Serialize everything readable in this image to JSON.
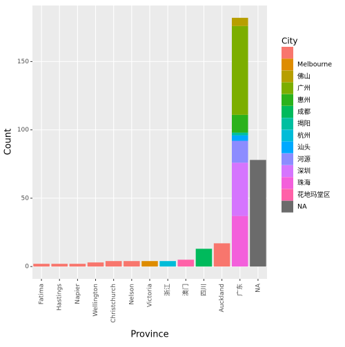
{
  "chart_data": {
    "type": "stacked_bar",
    "x_label": "Province",
    "y_label": "Count",
    "legend_title": "City",
    "categories": [
      "Fatima",
      "Hastings",
      "Napier",
      "Wellington",
      "Christchurch",
      "Nelson",
      "Victoria",
      "浙江",
      "澳门",
      "四川",
      "Auckland",
      "广东",
      "NA"
    ],
    "series": [
      {
        "name": null,
        "color": "#F8766D",
        "values": [
          2,
          2,
          2,
          3,
          4,
          4,
          null,
          null,
          null,
          null,
          17,
          null,
          null
        ]
      },
      {
        "name": "Melbourne",
        "color": "#DE8C00",
        "values": [
          null,
          null,
          null,
          null,
          null,
          null,
          4,
          null,
          null,
          null,
          null,
          null,
          null
        ]
      },
      {
        "name": "佛山",
        "color": "#B79F00",
        "values": [
          null,
          null,
          null,
          null,
          null,
          null,
          null,
          null,
          null,
          null,
          null,
          6,
          null
        ]
      },
      {
        "name": "广州",
        "color": "#7CAE00",
        "values": [
          null,
          null,
          null,
          null,
          null,
          null,
          null,
          null,
          null,
          null,
          null,
          65,
          null
        ]
      },
      {
        "name": "惠州",
        "color": "#2BB21C",
        "values": [
          null,
          null,
          null,
          null,
          null,
          null,
          null,
          null,
          null,
          null,
          null,
          13,
          null
        ]
      },
      {
        "name": "成都",
        "color": "#00BA5C",
        "values": [
          null,
          null,
          null,
          null,
          null,
          null,
          null,
          null,
          null,
          13,
          null,
          null,
          null
        ]
      },
      {
        "name": "揭阳",
        "color": "#00BFA0",
        "values": [
          null,
          null,
          null,
          null,
          null,
          null,
          null,
          null,
          null,
          null,
          null,
          2,
          null
        ]
      },
      {
        "name": "杭州",
        "color": "#00BCD8",
        "values": [
          null,
          null,
          null,
          null,
          null,
          null,
          null,
          4,
          null,
          null,
          null,
          null,
          null
        ]
      },
      {
        "name": "汕头",
        "color": "#00A9FF",
        "values": [
          null,
          null,
          null,
          null,
          null,
          null,
          null,
          null,
          null,
          null,
          null,
          4,
          null
        ]
      },
      {
        "name": "河源",
        "color": "#8C8CFF",
        "values": [
          null,
          null,
          null,
          null,
          null,
          null,
          null,
          null,
          null,
          null,
          null,
          16,
          null
        ]
      },
      {
        "name": "深圳",
        "color": "#D575FE",
        "values": [
          null,
          null,
          null,
          null,
          null,
          null,
          null,
          null,
          null,
          null,
          null,
          39,
          null
        ]
      },
      {
        "name": "珠海",
        "color": "#F35FDB",
        "values": [
          null,
          null,
          null,
          null,
          null,
          null,
          null,
          null,
          null,
          null,
          null,
          37,
          null
        ]
      },
      {
        "name": "花地玛堂区",
        "color": "#FF61A8",
        "values": [
          null,
          null,
          null,
          null,
          null,
          null,
          null,
          null,
          5,
          null,
          null,
          null,
          null
        ]
      },
      {
        "name": "NA",
        "color": "#6B6B6B",
        "values": [
          null,
          null,
          null,
          null,
          null,
          null,
          null,
          null,
          null,
          null,
          null,
          null,
          78
        ]
      }
    ],
    "ylim": [
      -9,
      191
    ],
    "yticks": [
      0,
      50,
      100,
      150
    ],
    "grid": true
  }
}
